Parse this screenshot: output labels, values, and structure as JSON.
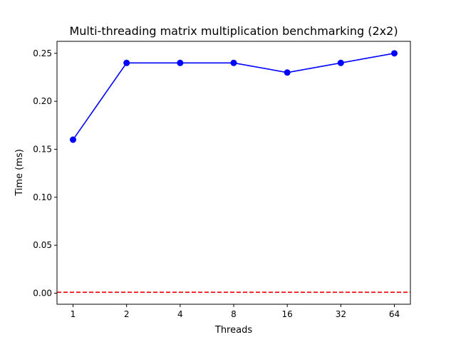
{
  "chart_data": {
    "type": "line",
    "title": "Multi-threading matrix multiplication benchmarking (2x2)",
    "xlabel": "Threads",
    "ylabel": "Time (ms)",
    "categories": [
      "1",
      "2",
      "4",
      "8",
      "16",
      "32",
      "64"
    ],
    "series": [
      {
        "values": [
          0.16,
          0.24,
          0.24,
          0.24,
          0.23,
          0.24,
          0.25
        ],
        "color": "#0000ff",
        "marker": "circle"
      }
    ],
    "reference_line": {
      "y": 0.001,
      "color": "#ff0000",
      "style": "dashed"
    },
    "ylim": [
      -0.0115,
      0.2625
    ],
    "yticks": [
      0.0,
      0.05,
      0.1,
      0.15,
      0.2,
      0.25
    ],
    "ytick_labels": [
      "0.00",
      "0.05",
      "0.10",
      "0.15",
      "0.20",
      "0.25"
    ],
    "grid": false,
    "legend": "none"
  }
}
